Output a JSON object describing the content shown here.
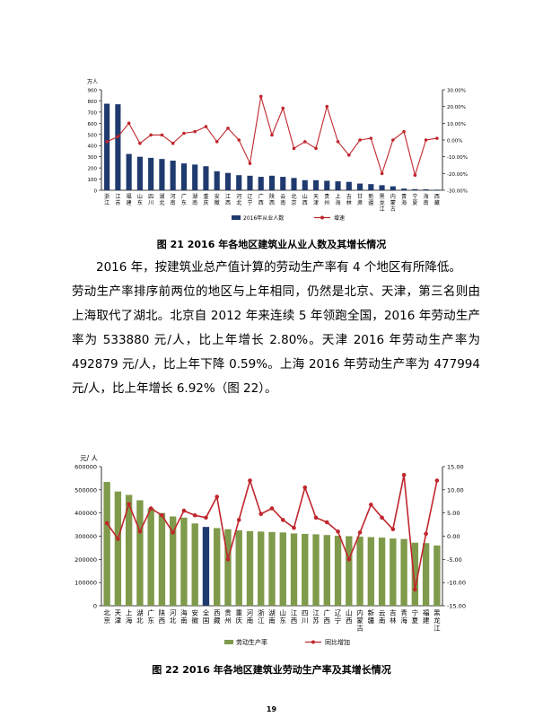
{
  "figure1": {
    "caption": "图 21   2016 年各地区建筑业从业人数及其增长情况",
    "chart_data": {
      "type": "bar",
      "yunit": "万人",
      "ylim_left": [
        0,
        900
      ],
      "left_ticks": [
        "0",
        "100",
        "200",
        "300",
        "400",
        "500",
        "600",
        "700",
        "800",
        "900"
      ],
      "ylim_right": [
        -30,
        30
      ],
      "right_ticks": [
        "-30.00%",
        "-20.00%",
        "-10.00%",
        "0.00%",
        "10.00%",
        "20.00%",
        "30.00%"
      ],
      "categories": [
        "浙江",
        "江苏",
        "福建",
        "山东",
        "四川",
        "湖北",
        "河南",
        "广东",
        "湖南",
        "重庆",
        "安徽",
        "江西",
        "河北",
        "辽宁",
        "广西",
        "陕西",
        "云南",
        "北京",
        "山西",
        "天津",
        "贵州",
        "上海",
        "吉林",
        "甘肃",
        "新疆",
        "黑龙江",
        "内蒙古",
        "青海",
        "宁夏",
        "海南",
        "西藏"
      ],
      "series": [
        {
          "name": "2016年从业人数",
          "type": "bar",
          "color": "#1f3a6e",
          "values": [
            775,
            770,
            325,
            300,
            290,
            280,
            265,
            240,
            230,
            215,
            170,
            155,
            135,
            130,
            120,
            130,
            120,
            110,
            90,
            90,
            85,
            80,
            75,
            60,
            55,
            45,
            35,
            15,
            10,
            8,
            5
          ]
        },
        {
          "name": "增速",
          "type": "line",
          "color": "#c0262d",
          "values": [
            -1,
            2,
            10,
            -2,
            3,
            3,
            -2,
            4,
            5,
            8,
            -1,
            7,
            0,
            -14,
            26,
            3,
            19,
            -5,
            -1,
            -5,
            20,
            -1,
            -9,
            0,
            1,
            -20,
            0,
            5,
            -21,
            0,
            1
          ]
        }
      ],
      "grid": false,
      "legend": "bottom"
    }
  },
  "paragraph": {
    "lines": [
      "2016 年，按建筑业总产值计算的劳动生产率有 4 个地区有所降低。",
      "劳动生产率排序前两位的地区与上年相同，仍然是北京、天津，第三名则由上海取代了湖北。北京自 2012 年来连续 5 年领跑全国，2016 年劳动生产率为 533880 元/人，比上年增长 2.80%。天津 2016 年劳动生产率为 492879 元/人，比上年下降 0.59%。上海 2016 年劳动生产率为 477994 元/人，比上年增长 6.92%（图 22）。"
    ]
  },
  "figure2": {
    "caption": "图 22   2016 年各地区建筑业劳动生产率及其增长情况",
    "chart_data": {
      "type": "bar",
      "yunit": "元/ 人",
      "ylim_left": [
        0,
        600000
      ],
      "left_ticks": [
        "0",
        "100000",
        "200000",
        "300000",
        "400000",
        "500000",
        "600000"
      ],
      "ylim_right": [
        -15,
        15
      ],
      "right_ticks": [
        "-15.00",
        "-10.00",
        "-5.00",
        "0.00",
        "5.00",
        "10.00",
        "15.00"
      ],
      "categories": [
        "北京",
        "天津",
        "上海",
        "湖北",
        "广东",
        "陕西",
        "河北",
        "海南",
        "安徽",
        "全国",
        "西藏",
        "贵州",
        "重庆",
        "河南",
        "浙江",
        "湖南",
        "山东",
        "江西",
        "四川",
        "江苏",
        "广西",
        "辽宁",
        "山西",
        "内蒙古",
        "新疆",
        "云南",
        "吉林",
        "青海",
        "宁夏",
        "福建",
        "黑龙江"
      ],
      "series": [
        {
          "name": "劳动生产率",
          "type": "bar",
          "color": "#7f9a4a",
          "highlight_color": "#1f3a6e",
          "highlight_index": 9,
          "values": [
            533880,
            492879,
            477994,
            455000,
            420000,
            400000,
            385000,
            380000,
            355000,
            340000,
            335000,
            330000,
            325000,
            322000,
            320000,
            318000,
            316000,
            312000,
            310000,
            308000,
            305000,
            302000,
            300000,
            298000,
            296000,
            294000,
            290000,
            288000,
            272000,
            270000,
            260000
          ]
        },
        {
          "name": "同比增加",
          "type": "line",
          "color": "#c0262d",
          "values": [
            2.8,
            -0.59,
            6.92,
            1.0,
            6.0,
            4.5,
            0.8,
            5.5,
            4.5,
            4.0,
            8.5,
            -5.0,
            3.5,
            12.0,
            4.8,
            6.0,
            3.5,
            1.8,
            10.5,
            4.0,
            3.0,
            1.0,
            -5.0,
            0.8,
            6.8,
            4.0,
            1.5,
            13.2,
            -11.5,
            0.5,
            12.0
          ]
        }
      ],
      "grid": false,
      "legend": "bottom"
    }
  },
  "page_number": "19"
}
